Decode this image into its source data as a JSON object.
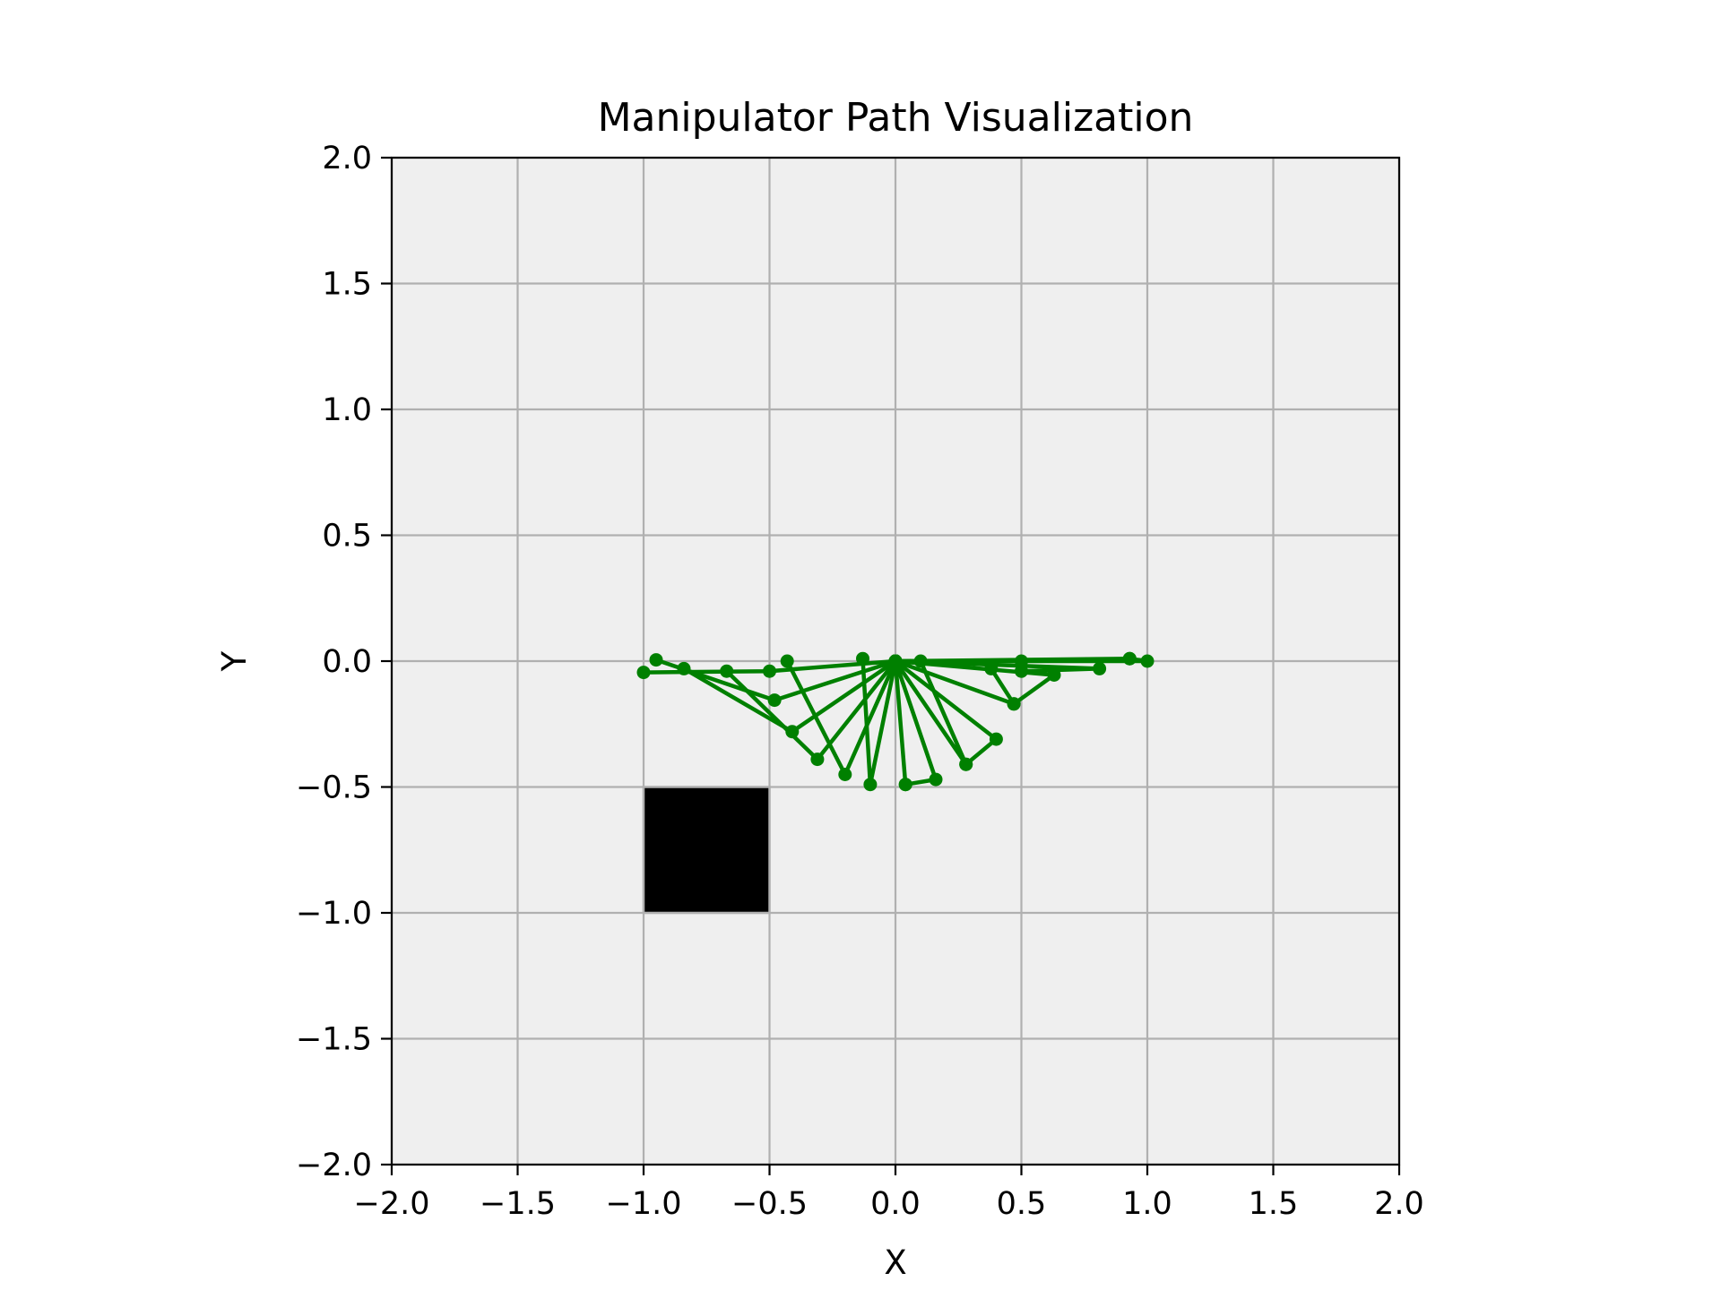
{
  "chart_data": {
    "type": "line",
    "title": "Manipulator Path Visualization",
    "xlabel": "X",
    "ylabel": "Y",
    "xlim": [
      -2.0,
      2.0
    ],
    "ylim": [
      -2.0,
      2.0
    ],
    "xticks": [
      "−2.0",
      "−1.5",
      "−1.0",
      "−0.5",
      "0.0",
      "0.5",
      "1.0",
      "1.5",
      "2.0"
    ],
    "yticks": [
      "2.0",
      "1.5",
      "1.0",
      "0.5",
      "0.0",
      "−0.5",
      "−1.0",
      "−1.5",
      "−2.0"
    ],
    "grid": true,
    "background_color": "#efefef",
    "grid_color": "#b0b0b0",
    "line_color": "#008000",
    "obstacle_color": "#000000",
    "obstacles": [
      {
        "shape": "rectangle",
        "x": [
          -1.0,
          -0.5
        ],
        "y": [
          -1.0,
          -0.5
        ]
      }
    ],
    "arm_configurations": [
      {
        "base": [
          0,
          0
        ],
        "elbow": [
          1.0,
          0.0
        ],
        "end_effector": [
          0.93,
          0.01
        ]
      },
      {
        "base": [
          0,
          0
        ],
        "elbow": [
          0.93,
          0.01
        ],
        "end_effector": [
          0.5,
          0.0
        ]
      },
      {
        "base": [
          0,
          0
        ],
        "elbow": [
          0.81,
          -0.03
        ],
        "end_effector": [
          0.5,
          -0.04
        ]
      },
      {
        "base": [
          0,
          0
        ],
        "elbow": [
          0.63,
          -0.055
        ],
        "end_effector": [
          0.47,
          -0.17
        ]
      },
      {
        "base": [
          0,
          0
        ],
        "elbow": [
          0.47,
          -0.17
        ],
        "end_effector": [
          0.38,
          -0.03
        ]
      },
      {
        "base": [
          0,
          0
        ],
        "elbow": [
          0.4,
          -0.31
        ],
        "end_effector": [
          0.28,
          -0.41
        ]
      },
      {
        "base": [
          0,
          0
        ],
        "elbow": [
          0.28,
          -0.41
        ],
        "end_effector": [
          0.1,
          0.0
        ]
      },
      {
        "base": [
          0,
          0
        ],
        "elbow": [
          0.16,
          -0.47
        ],
        "end_effector": [
          0.04,
          -0.49
        ]
      },
      {
        "base": [
          0,
          0
        ],
        "elbow": [
          0.04,
          -0.49
        ],
        "end_effector": [
          0.0,
          0.0
        ]
      },
      {
        "base": [
          0,
          0
        ],
        "elbow": [
          -0.1,
          -0.49
        ],
        "end_effector": [
          -0.13,
          0.01
        ]
      },
      {
        "base": [
          0,
          0
        ],
        "elbow": [
          -0.2,
          -0.45
        ],
        "end_effector": [
          -0.43,
          0.0
        ]
      },
      {
        "base": [
          0,
          0
        ],
        "elbow": [
          -0.31,
          -0.39
        ],
        "end_effector": [
          -0.67,
          -0.04
        ]
      },
      {
        "base": [
          0,
          0
        ],
        "elbow": [
          -0.41,
          -0.28
        ],
        "end_effector": [
          -0.84,
          -0.03
        ]
      },
      {
        "base": [
          0,
          0
        ],
        "elbow": [
          -0.48,
          -0.155
        ],
        "end_effector": [
          -0.95,
          0.005
        ]
      },
      {
        "base": [
          0,
          0
        ],
        "elbow": [
          -0.5,
          -0.04
        ],
        "end_effector": [
          -1.0,
          -0.045
        ]
      }
    ]
  }
}
